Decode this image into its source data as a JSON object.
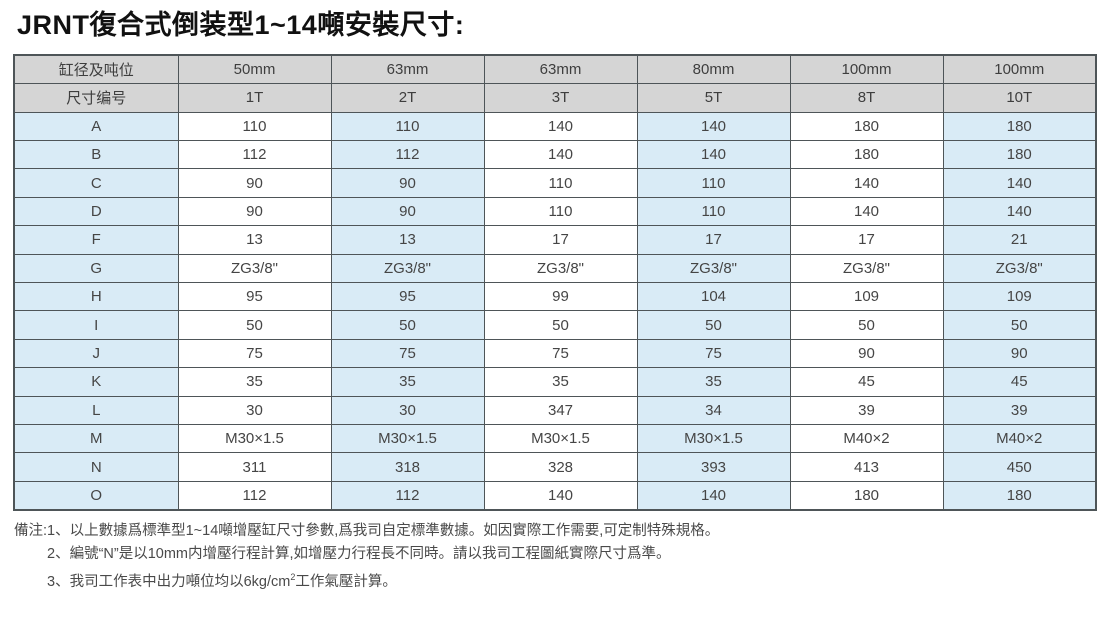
{
  "title": "JRNT復合式倒装型1~14噸安裝尺寸:",
  "table": {
    "header_rows": [
      {
        "label": "缸径及吨位",
        "values": [
          "50mm",
          "63mm",
          "63mm",
          "80mm",
          "100mm",
          "100mm"
        ]
      },
      {
        "label": "尺寸编号",
        "values": [
          "1T",
          "2T",
          "3T",
          "5T",
          "8T",
          "10T"
        ]
      }
    ],
    "rows": [
      {
        "label": "A",
        "values": [
          "110",
          "110",
          "140",
          "140",
          "180",
          "180"
        ]
      },
      {
        "label": "B",
        "values": [
          "112",
          "112",
          "140",
          "140",
          "180",
          "180"
        ]
      },
      {
        "label": "C",
        "values": [
          "90",
          "90",
          "110",
          "110",
          "140",
          "140"
        ]
      },
      {
        "label": "D",
        "values": [
          "90",
          "90",
          "110",
          "110",
          "140",
          "140"
        ]
      },
      {
        "label": "F",
        "values": [
          "13",
          "13",
          "17",
          "17",
          "17",
          "21"
        ]
      },
      {
        "label": "G",
        "values": [
          "ZG3/8\"",
          "ZG3/8\"",
          "ZG3/8\"",
          "ZG3/8\"",
          "ZG3/8\"",
          "ZG3/8\""
        ]
      },
      {
        "label": "H",
        "values": [
          "95",
          "95",
          "99",
          "104",
          "109",
          "109"
        ]
      },
      {
        "label": "I",
        "values": [
          "50",
          "50",
          "50",
          "50",
          "50",
          "50"
        ]
      },
      {
        "label": "J",
        "values": [
          "75",
          "75",
          "75",
          "75",
          "90",
          "90"
        ]
      },
      {
        "label": "K",
        "values": [
          "35",
          "35",
          "35",
          "35",
          "45",
          "45"
        ]
      },
      {
        "label": "L",
        "values": [
          "30",
          "30",
          "347",
          "34",
          "39",
          "39"
        ]
      },
      {
        "label": "M",
        "values": [
          "M30×1.5",
          "M30×1.5",
          "M30×1.5",
          "M30×1.5",
          "M40×2",
          "M40×2"
        ]
      },
      {
        "label": "N",
        "values": [
          "311",
          "318",
          "328",
          "393",
          "413",
          "450"
        ]
      },
      {
        "label": "O",
        "values": [
          "112",
          "112",
          "140",
          "140",
          "180",
          "180"
        ]
      }
    ]
  },
  "notes": {
    "prefix": "備注:",
    "items": [
      "1、以上數據爲標準型1~14噸增壓缸尺寸參數,爲我司自定標準數據。如因實際工作需要,可定制特殊規格。",
      "2、編號“N”是以10mm内增壓行程計算,如增壓力行程長不同時。請以我司工程圖紙實際尺寸爲準。",
      "3、我司工作表中出力噸位均以6kg/cm²工作氣壓計算。"
    ]
  },
  "colors": {
    "header_bg": "#d5d5d5",
    "blue_bg": "#d9ebf6",
    "white_bg": "#ffffff",
    "border": "#4e5558"
  }
}
